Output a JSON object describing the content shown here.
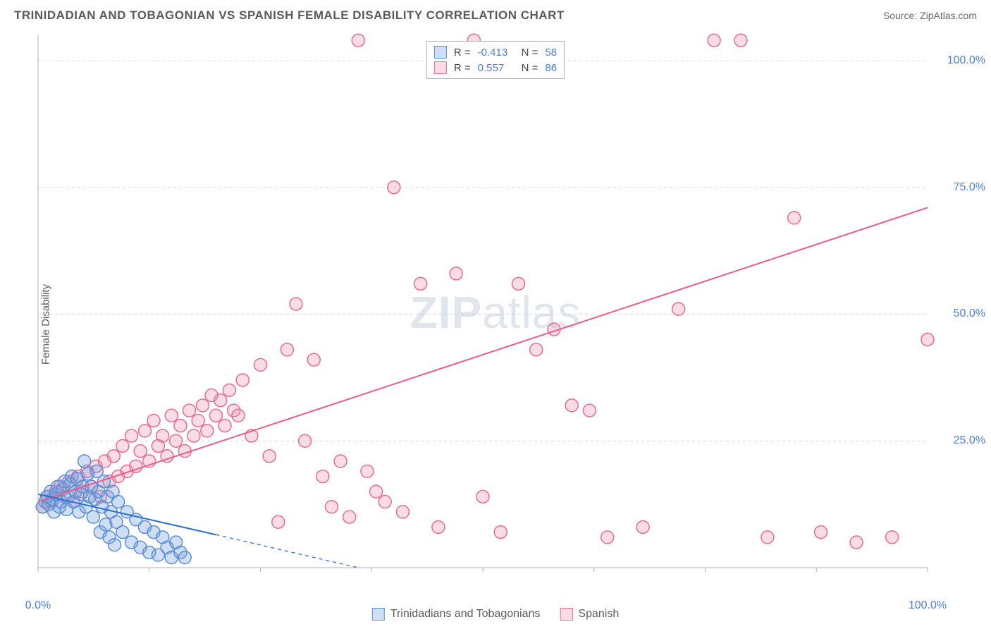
{
  "header": {
    "title": "TRINIDADIAN AND TOBAGONIAN VS SPANISH FEMALE DISABILITY CORRELATION CHART",
    "source": "Source: ZipAtlas.com"
  },
  "ylabel": "Female Disability",
  "watermark": {
    "zip": "ZIP",
    "atlas": "atlas"
  },
  "chart": {
    "type": "scatter",
    "xlim": [
      0,
      100
    ],
    "ylim": [
      0,
      105
    ],
    "grid_y": [
      25,
      50,
      75,
      100
    ],
    "grid_x": [
      0,
      12.5,
      25,
      37.5,
      50,
      62.5,
      75,
      87.5,
      100
    ],
    "x_tick_labels": [
      {
        "pos": 0,
        "label": "0.0%"
      },
      {
        "pos": 100,
        "label": "100.0%"
      }
    ],
    "y_tick_labels": [
      {
        "pos": 25,
        "label": "25.0%"
      },
      {
        "pos": 50,
        "label": "50.0%"
      },
      {
        "pos": 75,
        "label": "75.0%"
      },
      {
        "pos": 100,
        "label": "100.0%"
      }
    ],
    "grid_color": "#d9d9d9",
    "axis_color": "#b0b0b0",
    "background_color": "#ffffff",
    "marker_radius": 9,
    "marker_stroke_width": 1.5,
    "line_width": 2
  },
  "series": {
    "tt": {
      "label": "Trinidadians and Tobagonians",
      "fill": "rgba(120,160,220,0.35)",
      "stroke": "#5a8fd6",
      "line_color": "#2c6fd0",
      "R": "-0.413",
      "N": "58",
      "regression": {
        "x1": 0,
        "y1": 14.5,
        "x2": 20,
        "y2": 6.5,
        "dash_from_x": 20,
        "dash_to_x": 36,
        "dash_to_y": 0
      },
      "points": [
        [
          0.5,
          12
        ],
        [
          0.8,
          13
        ],
        [
          1.0,
          14
        ],
        [
          1.2,
          12.5
        ],
        [
          1.4,
          15
        ],
        [
          1.6,
          13.5
        ],
        [
          1.8,
          11
        ],
        [
          2.0,
          14.5
        ],
        [
          2.2,
          16
        ],
        [
          2.4,
          12
        ],
        [
          2.6,
          13
        ],
        [
          2.8,
          15.5
        ],
        [
          3.0,
          17
        ],
        [
          3.2,
          11.5
        ],
        [
          3.4,
          14
        ],
        [
          3.6,
          16.5
        ],
        [
          3.8,
          18
        ],
        [
          4.0,
          13
        ],
        [
          4.2,
          15
        ],
        [
          4.4,
          17.5
        ],
        [
          4.6,
          11
        ],
        [
          4.8,
          14.5
        ],
        [
          5.0,
          16
        ],
        [
          5.2,
          21
        ],
        [
          5.4,
          12
        ],
        [
          5.6,
          18.5
        ],
        [
          5.8,
          14
        ],
        [
          6.0,
          16
        ],
        [
          6.2,
          10
        ],
        [
          6.4,
          13.5
        ],
        [
          6.6,
          19
        ],
        [
          6.8,
          15
        ],
        [
          7.0,
          7
        ],
        [
          7.2,
          12
        ],
        [
          7.4,
          17
        ],
        [
          7.6,
          8.5
        ],
        [
          7.8,
          14
        ],
        [
          8.0,
          6
        ],
        [
          8.2,
          11
        ],
        [
          8.4,
          15
        ],
        [
          8.6,
          4.5
        ],
        [
          8.8,
          9
        ],
        [
          9.0,
          13
        ],
        [
          9.5,
          7
        ],
        [
          10.0,
          11
        ],
        [
          10.5,
          5
        ],
        [
          11.0,
          9.5
        ],
        [
          11.5,
          4
        ],
        [
          12.0,
          8
        ],
        [
          12.5,
          3
        ],
        [
          13.0,
          7
        ],
        [
          13.5,
          2.5
        ],
        [
          14.0,
          6
        ],
        [
          14.5,
          4
        ],
        [
          15.0,
          2
        ],
        [
          15.5,
          5
        ],
        [
          16.0,
          3
        ],
        [
          16.5,
          2
        ]
      ]
    },
    "sp": {
      "label": "Spanish",
      "fill": "rgba(240,140,170,0.30)",
      "stroke": "#e86b94",
      "line_color": "#e85d8a",
      "R": "0.557",
      "N": "86",
      "regression": {
        "x1": 0,
        "y1": 13,
        "x2": 100,
        "y2": 71
      },
      "points": [
        [
          0.5,
          12
        ],
        [
          1.0,
          14
        ],
        [
          1.5,
          13
        ],
        [
          2.0,
          15
        ],
        [
          2.5,
          16
        ],
        [
          3.0,
          14
        ],
        [
          3.5,
          17
        ],
        [
          4.0,
          13
        ],
        [
          4.5,
          18
        ],
        [
          5.0,
          15
        ],
        [
          5.5,
          19
        ],
        [
          6.0,
          16
        ],
        [
          6.5,
          20
        ],
        [
          7.0,
          14
        ],
        [
          7.5,
          21
        ],
        [
          8.0,
          17
        ],
        [
          8.5,
          22
        ],
        [
          9.0,
          18
        ],
        [
          9.5,
          24
        ],
        [
          10.0,
          19
        ],
        [
          10.5,
          26
        ],
        [
          11.0,
          20
        ],
        [
          11.5,
          23
        ],
        [
          12.0,
          27
        ],
        [
          12.5,
          21
        ],
        [
          13.0,
          29
        ],
        [
          13.5,
          24
        ],
        [
          14.0,
          26
        ],
        [
          14.5,
          22
        ],
        [
          15.0,
          30
        ],
        [
          15.5,
          25
        ],
        [
          16.0,
          28
        ],
        [
          16.5,
          23
        ],
        [
          17.0,
          31
        ],
        [
          17.5,
          26
        ],
        [
          18.0,
          29
        ],
        [
          18.5,
          32
        ],
        [
          19.0,
          27
        ],
        [
          19.5,
          34
        ],
        [
          20.0,
          30
        ],
        [
          20.5,
          33
        ],
        [
          21.0,
          28
        ],
        [
          21.5,
          35
        ],
        [
          22.0,
          31
        ],
        [
          22.5,
          30
        ],
        [
          23.0,
          37
        ],
        [
          24.0,
          26
        ],
        [
          25.0,
          40
        ],
        [
          26.0,
          22
        ],
        [
          27.0,
          9
        ],
        [
          28.0,
          43
        ],
        [
          29.0,
          52
        ],
        [
          30.0,
          25
        ],
        [
          31.0,
          41
        ],
        [
          32.0,
          18
        ],
        [
          33.0,
          12
        ],
        [
          34.0,
          21
        ],
        [
          35.0,
          10
        ],
        [
          36.0,
          104
        ],
        [
          37.0,
          19
        ],
        [
          38.0,
          15
        ],
        [
          39.0,
          13
        ],
        [
          40.0,
          75
        ],
        [
          41.0,
          11
        ],
        [
          43.0,
          56
        ],
        [
          45.0,
          8
        ],
        [
          47.0,
          58
        ],
        [
          49.0,
          104
        ],
        [
          50.0,
          14
        ],
        [
          52.0,
          7
        ],
        [
          54.0,
          56
        ],
        [
          56.0,
          43
        ],
        [
          58.0,
          47
        ],
        [
          60.0,
          32
        ],
        [
          62.0,
          31
        ],
        [
          64.0,
          6
        ],
        [
          68.0,
          8
        ],
        [
          72.0,
          51
        ],
        [
          76.0,
          104
        ],
        [
          79.0,
          104
        ],
        [
          82.0,
          6
        ],
        [
          85.0,
          69
        ],
        [
          88.0,
          7
        ],
        [
          92.0,
          5
        ],
        [
          96.0,
          6
        ],
        [
          100.0,
          45
        ]
      ]
    }
  },
  "legend_top": {
    "rows": [
      {
        "series": "tt",
        "R_label": "R =",
        "N_label": "N ="
      },
      {
        "series": "sp",
        "R_label": "R =",
        "N_label": "N ="
      }
    ]
  },
  "legend_bottom": [
    {
      "series": "tt"
    },
    {
      "series": "sp"
    }
  ]
}
